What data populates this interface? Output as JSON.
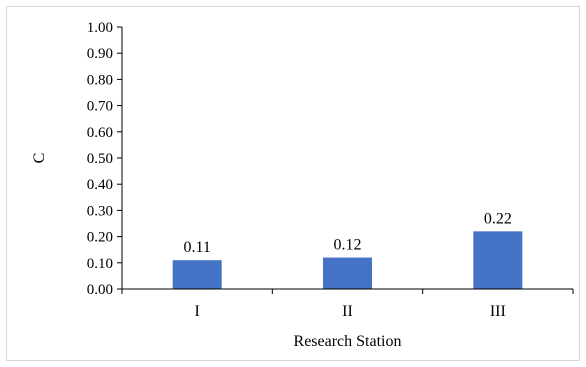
{
  "chart_data": {
    "type": "bar",
    "categories": [
      "I",
      "II",
      "III"
    ],
    "values": [
      0.11,
      0.12,
      0.22
    ],
    "data_labels": [
      "0.11",
      "0.12",
      "0.22"
    ],
    "title": "",
    "xlabel": "Research Station",
    "ylabel": "C",
    "ylim": [
      0,
      1.0
    ],
    "yticks": [
      0.0,
      0.1,
      0.2,
      0.3,
      0.4,
      0.5,
      0.6,
      0.7,
      0.8,
      0.9,
      1.0
    ],
    "ytick_labels": [
      "0.00",
      "0.10",
      "0.20",
      "0.30",
      "0.40",
      "0.50",
      "0.60",
      "0.70",
      "0.80",
      "0.90",
      "1.00"
    ],
    "grid": false,
    "legend": "none",
    "bar_color": "#4472C4",
    "axis_color": "#000000",
    "border_color": "#D9D9D9"
  }
}
